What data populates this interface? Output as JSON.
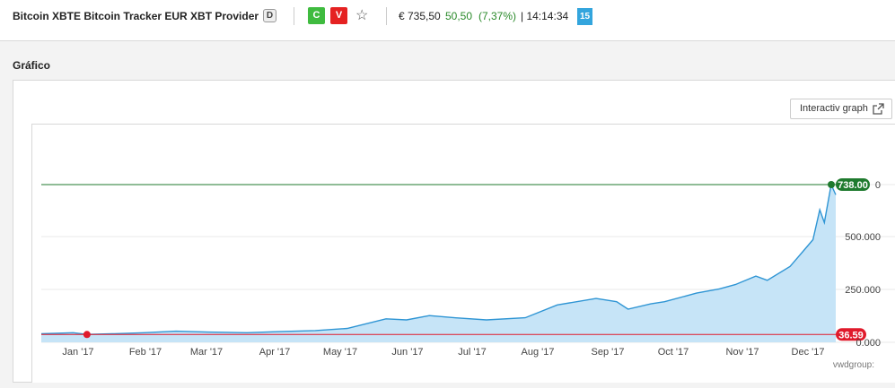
{
  "header": {
    "title": "Bitcoin XBTE Bitcoin Tracker EUR XBT Provider",
    "d_badge": "D",
    "buy_label": "C",
    "sell_label": "V",
    "price": "€ 735,50",
    "change": "50,50",
    "change_pct": "(7,37%)",
    "time": "| 14:14:34",
    "delay_badge": "15"
  },
  "section": {
    "title": "Gráfico"
  },
  "interactive_button": {
    "label": "Interactiv graph"
  },
  "chart": {
    "source_label": "vwdgroup:",
    "high_label": "738.00",
    "low_label": "36.59",
    "y_axis_tick_labels": [
      "500.000",
      "250.000",
      "0.000",
      "0"
    ],
    "x_axis_tick_labels": [
      "Jan '17",
      "Feb '17",
      "Mar '17",
      "Apr '17",
      "May '17",
      "Jun '17",
      "Jul '17",
      "Aug '17",
      "Sep '17",
      "Oct '17",
      "Nov '17",
      "Dec '17"
    ]
  },
  "colors": {
    "line": "#2f95d4",
    "area": "#c6e4f7",
    "high": "#1f7a2e",
    "low": "#e01a2b"
  },
  "chart_data": {
    "type": "area",
    "title": "",
    "xlabel": "",
    "ylabel": "",
    "ylim": [
      0,
      760
    ],
    "x": [
      "2017-01-01",
      "2017-01-15",
      "2017-01-21",
      "2017-02-01",
      "2017-02-15",
      "2017-03-01",
      "2017-03-15",
      "2017-04-01",
      "2017-04-15",
      "2017-05-01",
      "2017-05-15",
      "2017-06-01",
      "2017-06-10",
      "2017-06-20",
      "2017-07-01",
      "2017-07-15",
      "2017-08-01",
      "2017-08-15",
      "2017-09-01",
      "2017-09-10",
      "2017-09-15",
      "2017-09-25",
      "2017-10-01",
      "2017-10-15",
      "2017-10-25",
      "2017-11-01",
      "2017-11-10",
      "2017-11-15",
      "2017-11-25",
      "2017-12-01",
      "2017-12-05",
      "2017-12-08",
      "2017-12-10",
      "2017-12-13",
      "2017-12-15"
    ],
    "series": [
      {
        "values": [
          40,
          45,
          37,
          40,
          45,
          52,
          48,
          45,
          50,
          55,
          65,
          110,
          105,
          125,
          115,
          105,
          115,
          175,
          205,
          190,
          155,
          180,
          190,
          230,
          250,
          270,
          310,
          290,
          355,
          430,
          480,
          620,
          560,
          738,
          690
        ]
      }
    ],
    "high": 738.0,
    "low": 36.59,
    "grid": true
  }
}
